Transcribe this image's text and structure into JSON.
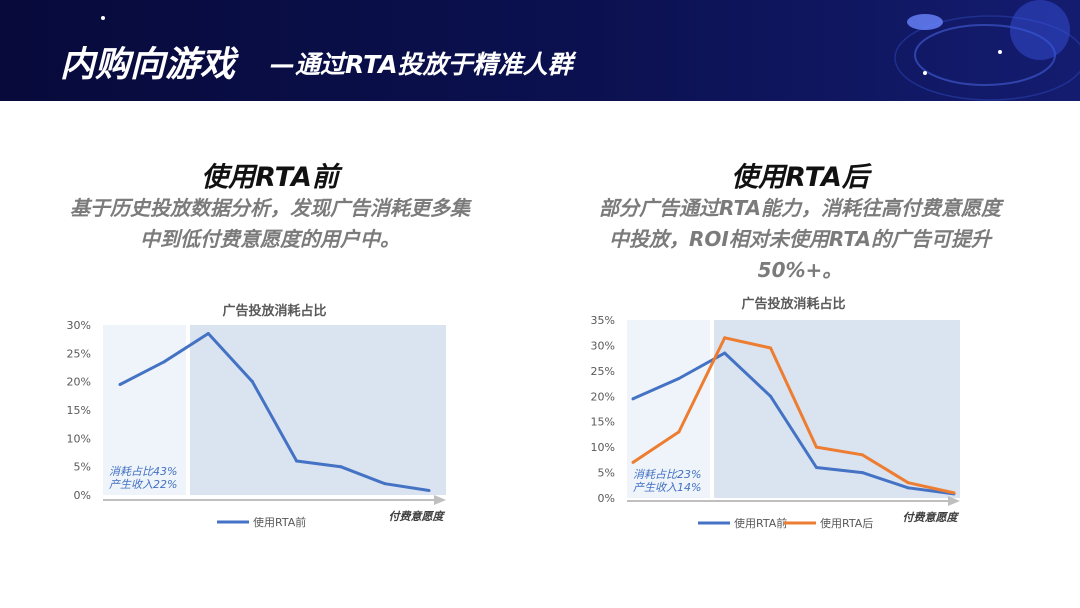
{
  "header": {
    "title_main": "内购向游戏",
    "title_sub": "—通过RTA投放于精准人群"
  },
  "left": {
    "title": "使用RTA前",
    "desc_line1": "基于历史投放数据分析，发现广告消耗更多集",
    "desc_line2": "中到低付费意愿度的用户中。"
  },
  "right": {
    "title": "使用RTA后",
    "desc_line1": "部分广告通过RTA能力，消耗往高付费意愿度",
    "desc_line2": "中投放，ROI相对未使用RTA的广告可提升",
    "desc_line3": "50%+。"
  },
  "colors": {
    "before": "#4472c4",
    "after": "#ed7d31",
    "highlight": "#dae3f0",
    "lowband": "#eef4fa",
    "annotation": "#4472c4"
  },
  "chart_data": [
    {
      "type": "line",
      "title": "广告投放消耗占比",
      "xlabel": "付费意愿度",
      "ylabel": "",
      "ylim": [
        0,
        30
      ],
      "yticks": [
        "0%",
        "5%",
        "10%",
        "15%",
        "20%",
        "25%",
        "30%"
      ],
      "grid": false,
      "legend": "bottom",
      "series": [
        {
          "name": "使用RTA前",
          "values": [
            19.5,
            23.5,
            28.5,
            20,
            6,
            5,
            2,
            0.8
          ]
        }
      ],
      "annotation_line1": "消耗占比43%",
      "annotation_line2": "产生收入22%"
    },
    {
      "type": "line",
      "title": "广告投放消耗占比",
      "xlabel": "付费意愿度",
      "ylabel": "",
      "ylim": [
        0,
        35
      ],
      "yticks": [
        "0%",
        "5%",
        "10%",
        "15%",
        "20%",
        "25%",
        "30%",
        "35%"
      ],
      "grid": false,
      "legend": "bottom",
      "series": [
        {
          "name": "使用RTA前",
          "values": [
            19.5,
            23.5,
            28.5,
            20,
            6,
            5,
            2,
            0.8
          ]
        },
        {
          "name": "使用RTA后",
          "values": [
            7,
            13,
            31.5,
            29.5,
            10,
            8.5,
            3,
            1
          ]
        }
      ],
      "annotation_line1": "消耗占比23%",
      "annotation_line2": "产生收入14%"
    }
  ]
}
